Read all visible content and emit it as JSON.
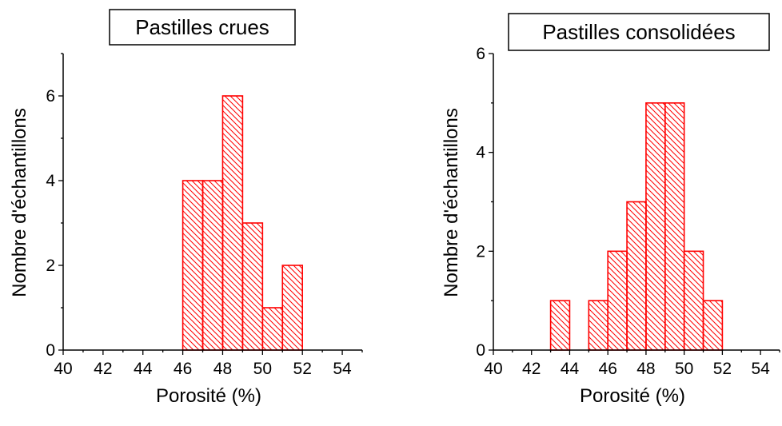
{
  "chart_data": [
    {
      "type": "bar",
      "title": "Pastilles crues",
      "xlabel": "Porosité (%)",
      "ylabel": "Nombre d'échantillons",
      "xlim": [
        40,
        55
      ],
      "ylim": [
        0,
        7
      ],
      "x_ticks": [
        "40",
        "42",
        "44",
        "46",
        "48",
        "50",
        "52",
        "54"
      ],
      "y_ticks": [
        "0",
        "2",
        "4",
        "6"
      ],
      "bin_width": 1,
      "bins": [
        {
          "x0": 46,
          "x1": 47,
          "count": 4
        },
        {
          "x0": 47,
          "x1": 48,
          "count": 4
        },
        {
          "x0": 48,
          "x1": 49,
          "count": 6
        },
        {
          "x0": 49,
          "x1": 50,
          "count": 3
        },
        {
          "x0": 50,
          "x1": 51,
          "count": 1
        },
        {
          "x0": 51,
          "x1": 52,
          "count": 2
        }
      ],
      "bar_color": "#ff0000",
      "fill": "hatched"
    },
    {
      "type": "bar",
      "title": "Pastilles consolidées",
      "xlabel": "Porosité (%)",
      "ylabel": "Nombre d'échantillons",
      "xlim": [
        40,
        55
      ],
      "ylim": [
        0,
        6
      ],
      "x_ticks": [
        "40",
        "42",
        "44",
        "46",
        "48",
        "50",
        "52",
        "54"
      ],
      "y_ticks": [
        "0",
        "2",
        "4",
        "6"
      ],
      "bin_width": 1,
      "bins": [
        {
          "x0": 43,
          "x1": 44,
          "count": 1
        },
        {
          "x0": 45,
          "x1": 46,
          "count": 1
        },
        {
          "x0": 46,
          "x1": 47,
          "count": 2
        },
        {
          "x0": 47,
          "x1": 48,
          "count": 3
        },
        {
          "x0": 48,
          "x1": 49,
          "count": 5
        },
        {
          "x0": 49,
          "x1": 50,
          "count": 5
        },
        {
          "x0": 50,
          "x1": 51,
          "count": 2
        },
        {
          "x0": 51,
          "x1": 52,
          "count": 1
        }
      ],
      "bar_color": "#ff0000",
      "fill": "hatched"
    }
  ]
}
